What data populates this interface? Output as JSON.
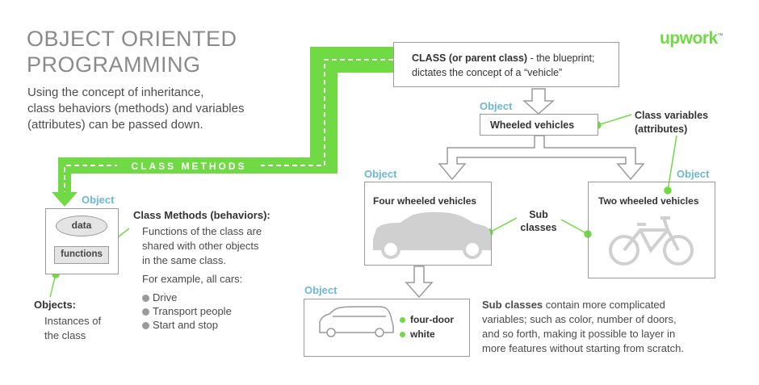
{
  "title_lines": [
    "OBJECT ORIENTED",
    "PROGRAMMING"
  ],
  "intro_lines": [
    "Using the concept of inheritance,",
    "class behaviors (methods) and variables",
    "(attributes) can be passed down."
  ],
  "logo": "upwork",
  "logo_tm": "™",
  "class_box": {
    "bold": "CLASS (or parent class)",
    "rest": " - the blueprint;",
    "line2": "dictates the concept of a “vehicle”"
  },
  "object_label": "Object",
  "wheeled": "Wheeled vehicles",
  "class_variables": [
    "Class variables",
    "(attributes)"
  ],
  "four_wheeled": "Four wheeled vehicles",
  "two_wheeled": "Two wheeled vehicles",
  "sub_classes": [
    "Sub",
    "classes"
  ],
  "class_methods_banner": "CLASS METHODS",
  "left_object": {
    "data": "data",
    "functions": "functions"
  },
  "class_methods_title": "Class Methods (behaviors):",
  "class_methods_desc": [
    "Functions of the class are",
    "shared with other objects",
    "in the same class."
  ],
  "example_intro": "For example, all cars:",
  "examples": [
    "Drive",
    "Transport people",
    "Start and stop"
  ],
  "objects_title": "Objects:",
  "objects_desc": [
    "Instances of",
    "the class"
  ],
  "instance_attrs": [
    "four-door",
    "white"
  ],
  "sub_desc": {
    "bold": "Sub classes",
    "lines": [
      " contain more complicated",
      "variables; such as color, number of doors,",
      "and so forth, making it possible to layer in",
      "more features without starting from scratch."
    ]
  },
  "colors": {
    "green": "#6fda44",
    "blue": "#6cb8d4",
    "gray": "#9a9a9a"
  }
}
